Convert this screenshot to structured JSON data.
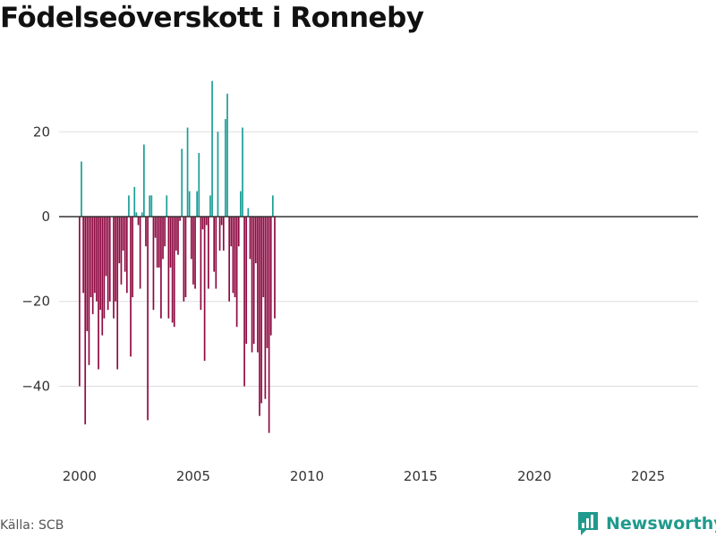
{
  "chart_data": {
    "type": "bar",
    "title": "Födelseöverskott i Ronneby",
    "xlabel": "",
    "ylabel": "",
    "ylim": [
      -57,
      38
    ],
    "xlim": [
      1999.1,
      2027.2
    ],
    "y_ticks": [
      -40,
      -20,
      0,
      20
    ],
    "x_ticks": [
      2000,
      2005,
      2010,
      2015,
      2020,
      2025
    ],
    "positive_color": "#1a9e96",
    "negative_color": "#8e0a42",
    "series": [
      {
        "name": "Födelseöverskott",
        "start_year": 2000,
        "period": "month",
        "values": [
          -40,
          13,
          -18,
          -49,
          -27,
          -35,
          -19,
          -23,
          -18,
          -20,
          -36,
          -22,
          -28,
          -24,
          -14,
          -22,
          -20,
          0,
          -24,
          -20,
          -36,
          -11,
          -16,
          -8,
          -13,
          -18,
          5,
          -33,
          -19,
          7,
          1,
          -2,
          -17,
          1,
          17,
          -7,
          -48,
          5,
          5,
          -22,
          -5,
          -12,
          -12,
          -24,
          -10,
          -7,
          5,
          -24,
          -12,
          -25,
          -26,
          -8,
          -9,
          -1,
          16,
          -20,
          -19,
          21,
          6,
          -10,
          -16,
          -17,
          6,
          15,
          -22,
          -3,
          -34,
          -2,
          -17,
          5,
          32,
          -13,
          -17,
          20,
          -8,
          -2,
          -8,
          23,
          29,
          -20,
          -7,
          -18,
          -19,
          -26,
          -7,
          6,
          21,
          -40,
          -30,
          2,
          -10,
          -32,
          -30,
          -11,
          -32,
          -47,
          -44,
          -19,
          -43,
          -31,
          -51,
          -28,
          5,
          -24
        ]
      }
    ]
  },
  "footer": {
    "source": "Källa: SCB",
    "brand": "Newsworthy"
  }
}
